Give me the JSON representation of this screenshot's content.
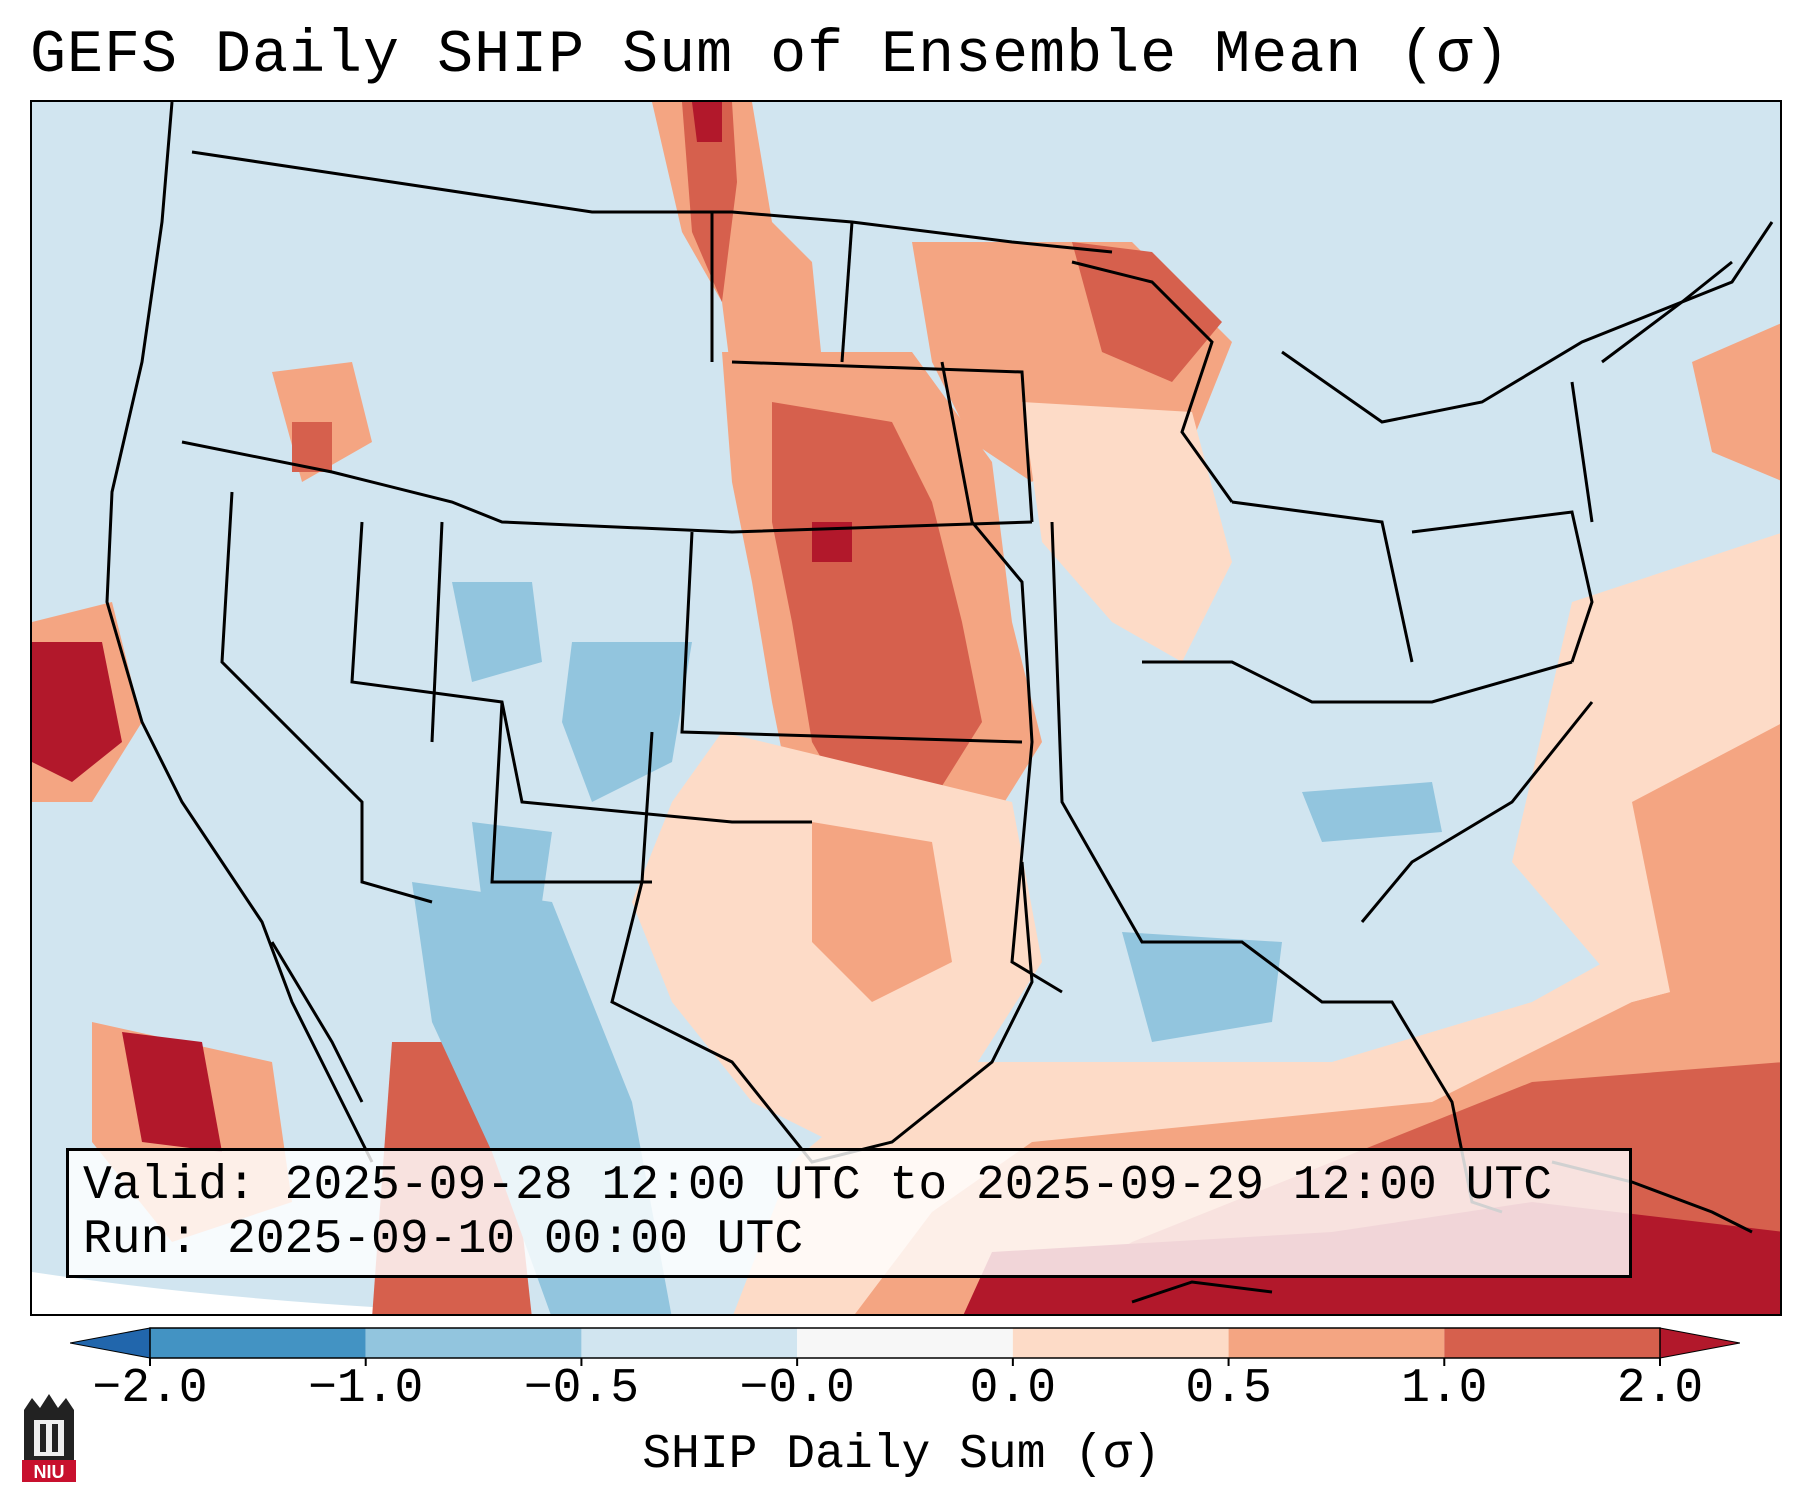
{
  "title": "GEFS Daily SHIP Sum of Ensemble Mean (σ)",
  "info": {
    "valid": "Valid: 2025-09-28 12:00 UTC to 2025-09-29 12:00 UTC",
    "run": "Run:   2025-09-10 00:00 UTC"
  },
  "colorbar": {
    "label": "SHIP Daily Sum (σ)",
    "ticks": [
      "−2.0",
      "−1.0",
      "−0.5",
      "−0.0",
      "0.0",
      "0.5",
      "1.0",
      "2.0"
    ],
    "colors": [
      "#4393c3",
      "#92c5de",
      "#d1e5f0",
      "#f7f7f7",
      "#fddbc7",
      "#f4a582",
      "#d6604d",
      "#b2182b"
    ],
    "under_color": "#2166ac",
    "over_color": "#b2182b"
  },
  "map": {
    "region": "Continental United States",
    "background_color": "#d1e5f0"
  },
  "logo": {
    "text": "NIU"
  }
}
